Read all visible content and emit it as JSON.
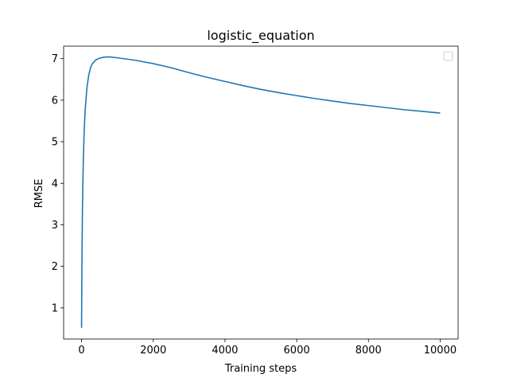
{
  "chart_data": {
    "type": "line",
    "title": "logistic_equation",
    "xlabel": "Training steps",
    "ylabel": "RMSE",
    "xlim": [
      -500,
      10500
    ],
    "ylim": [
      0.25,
      7.3
    ],
    "xticks": [
      0,
      2000,
      4000,
      6000,
      8000,
      10000
    ],
    "yticks": [
      1,
      2,
      3,
      4,
      5,
      6,
      7
    ],
    "grid": false,
    "legend": {
      "location": "top-right",
      "entries": []
    },
    "series": [
      {
        "color": "#1f77b4",
        "x": [
          0,
          10,
          25,
          50,
          75,
          100,
          150,
          200,
          250,
          300,
          400,
          500,
          600,
          700,
          800,
          1000,
          1500,
          2000,
          2500,
          3000,
          3500,
          4000,
          4500,
          5000,
          5500,
          6000,
          6500,
          7000,
          7500,
          8000,
          8500,
          9000,
          9500,
          10000
        ],
        "y": [
          0.52,
          2.0,
          3.4,
          4.6,
          5.3,
          5.75,
          6.3,
          6.6,
          6.78,
          6.88,
          6.97,
          7.01,
          7.03,
          7.04,
          7.04,
          7.02,
          6.96,
          6.88,
          6.78,
          6.66,
          6.55,
          6.45,
          6.35,
          6.26,
          6.18,
          6.11,
          6.04,
          5.98,
          5.92,
          5.87,
          5.82,
          5.77,
          5.73,
          5.69
        ]
      }
    ]
  }
}
